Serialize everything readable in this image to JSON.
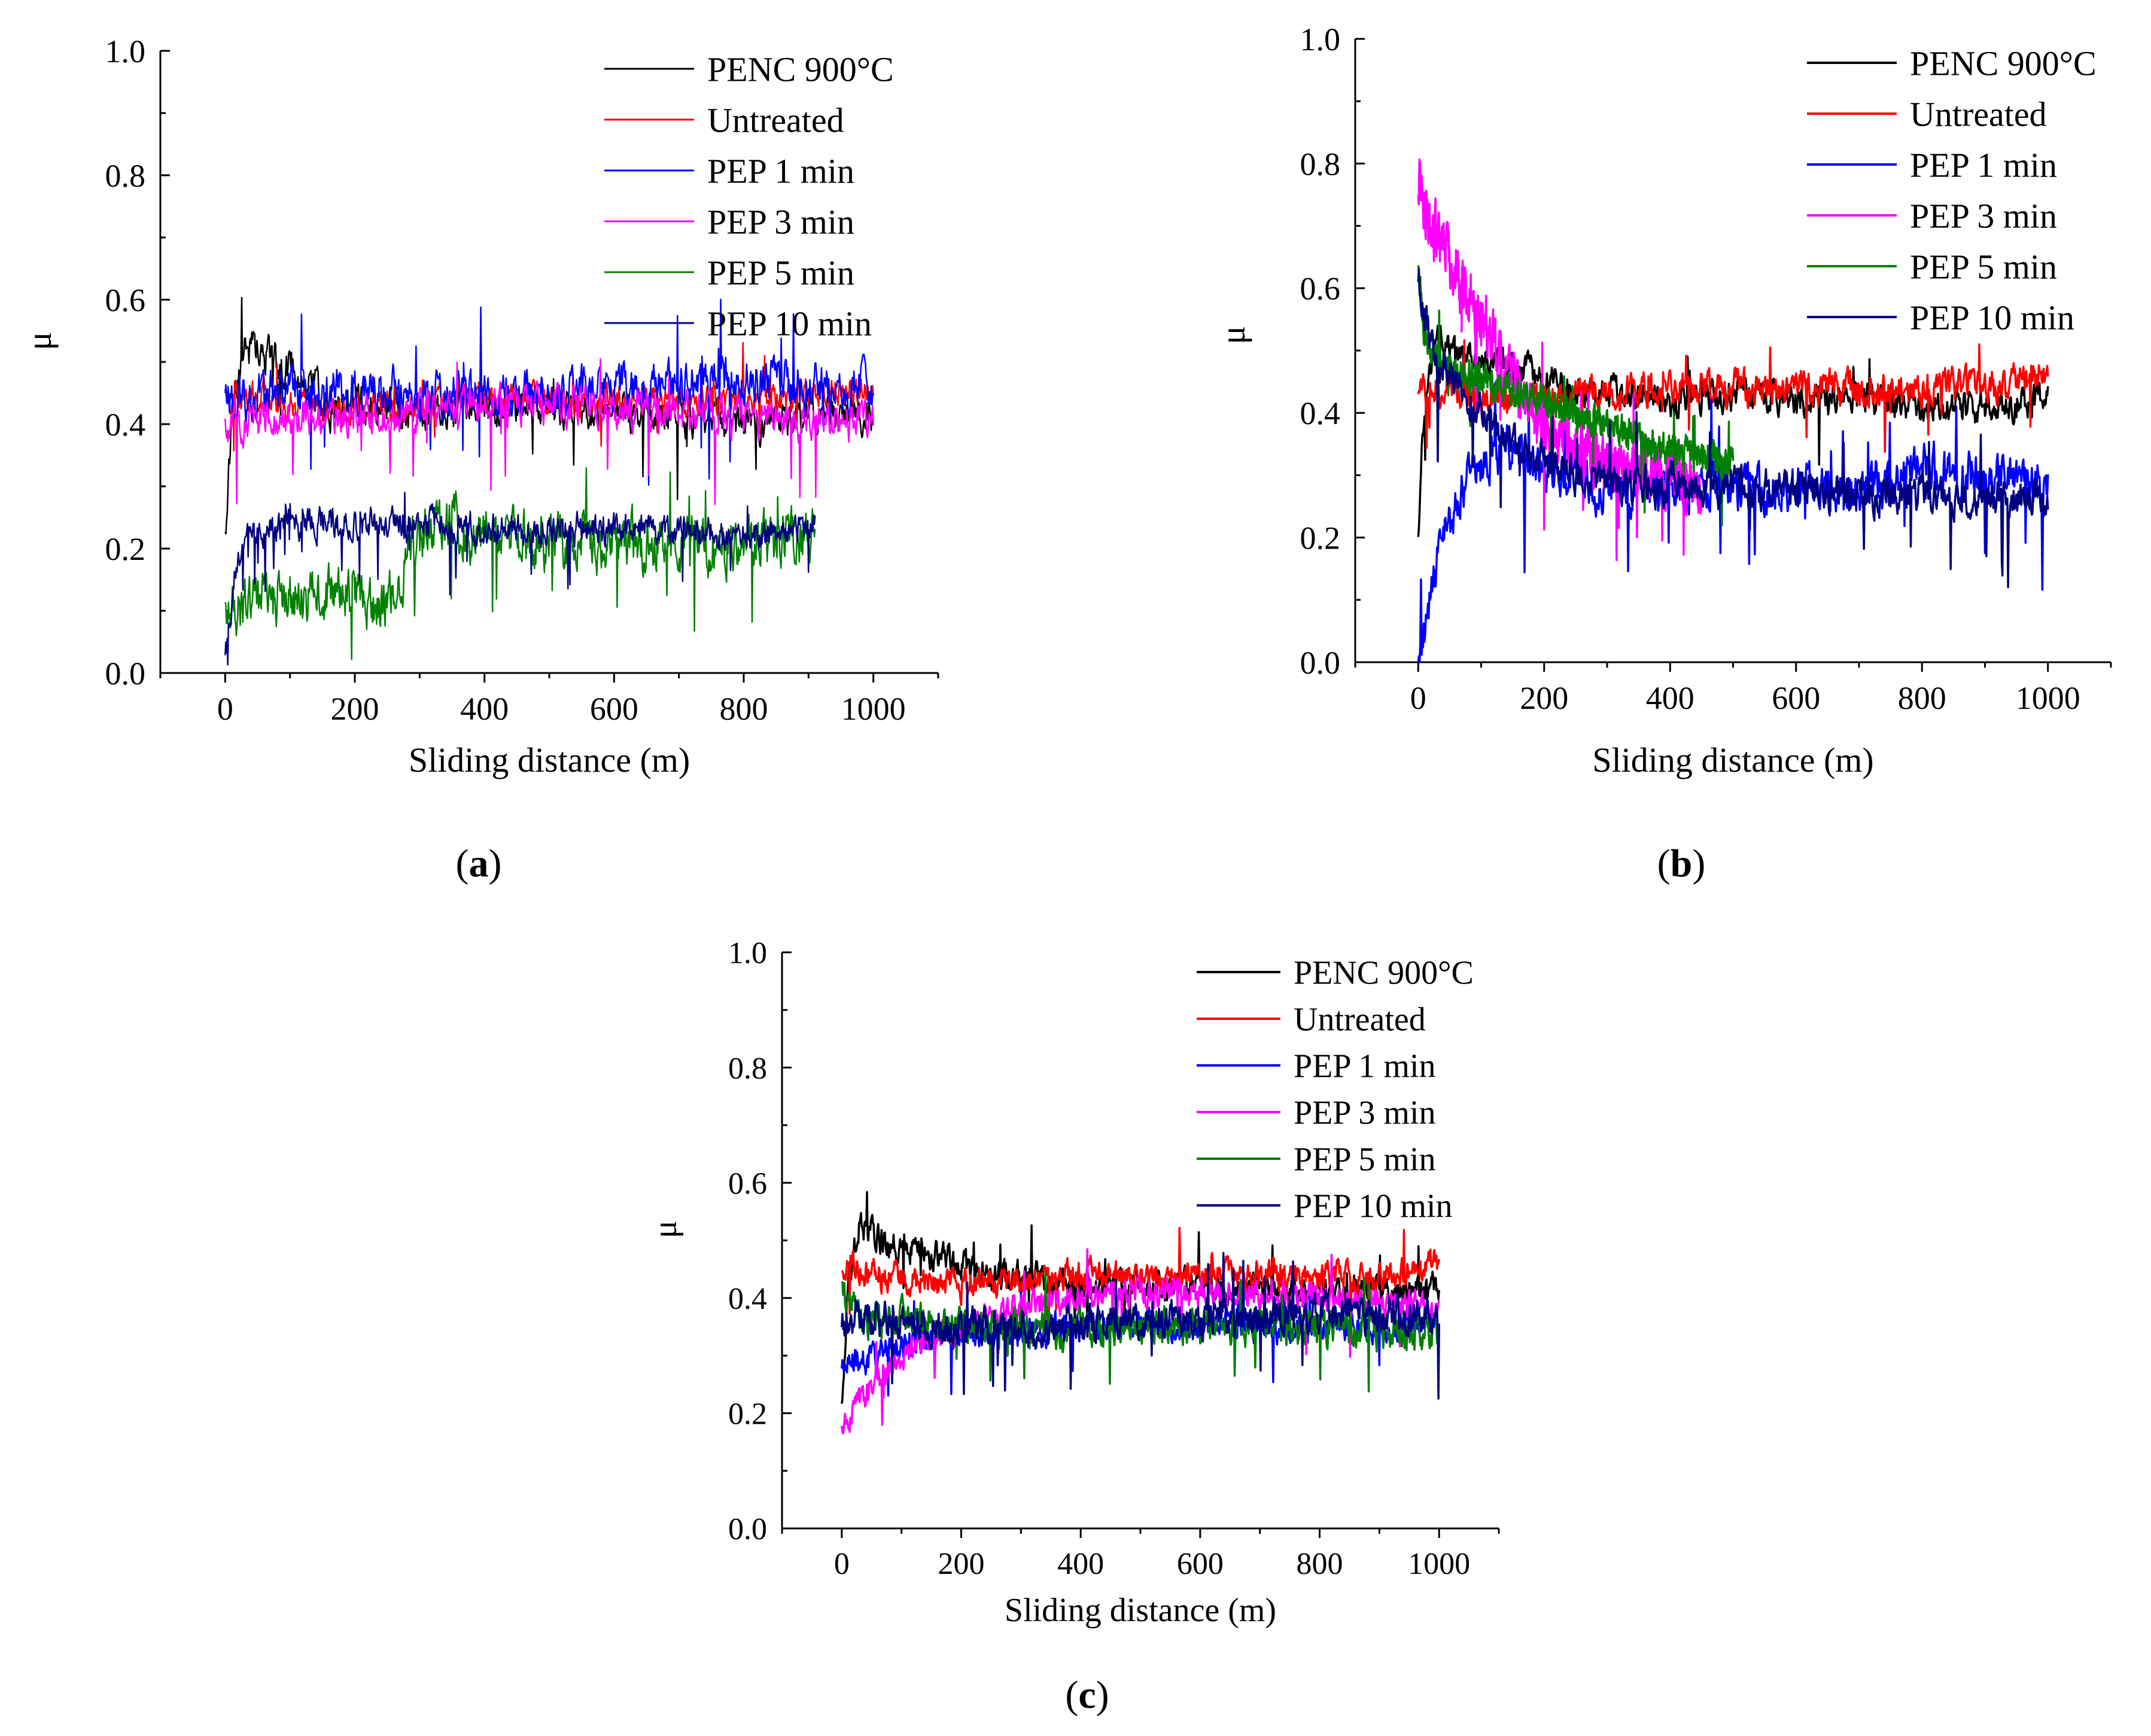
{
  "figure": {
    "panel_letters": [
      "a",
      "b",
      "c"
    ]
  },
  "chart_data": [
    {
      "type": "line",
      "panel": "a",
      "title": "",
      "xlabel": "Sliding distance (m)",
      "ylabel": "μ",
      "xlim": [
        -100,
        1100
      ],
      "ylim": [
        0,
        1.0
      ],
      "xticks": [
        0,
        200,
        400,
        600,
        800,
        1000
      ],
      "yticks": [
        0.0,
        0.2,
        0.4,
        0.6,
        0.8,
        1.0
      ],
      "tick_labels_x": [
        "0",
        "200",
        "400",
        "600",
        "800",
        "1000"
      ],
      "tick_labels_y": [
        "0.0",
        "0.2",
        "0.4",
        "0.6",
        "0.8",
        "1.0"
      ],
      "legend_position": "top-right",
      "series": [
        {
          "name": "PENC 900°C",
          "color": "#000000",
          "noise": 0.025,
          "x": [
            0,
            10,
            30,
            40,
            80,
            140,
            150,
            200,
            300,
            400,
            500,
            600,
            700,
            760,
            800,
            900,
            1000
          ],
          "y": [
            0.22,
            0.42,
            0.52,
            0.52,
            0.5,
            0.47,
            0.42,
            0.43,
            0.42,
            0.43,
            0.43,
            0.42,
            0.42,
            0.4,
            0.4,
            0.41,
            0.42
          ]
        },
        {
          "name": "Untreated",
          "color": "#ff0000",
          "noise": 0.02,
          "x": [
            0,
            20,
            100,
            200,
            300,
            400,
            500,
            600,
            700,
            800,
            900,
            1000
          ],
          "y": [
            0.45,
            0.45,
            0.43,
            0.42,
            0.43,
            0.44,
            0.44,
            0.44,
            0.44,
            0.44,
            0.45,
            0.46
          ]
        },
        {
          "name": "PEP 1 min",
          "color": "#0000ff",
          "noise": 0.03,
          "x": [
            0,
            100,
            200,
            300,
            400,
            500,
            600,
            700,
            800,
            900,
            1000
          ],
          "y": [
            0.44,
            0.45,
            0.45,
            0.45,
            0.45,
            0.45,
            0.46,
            0.46,
            0.47,
            0.46,
            0.46
          ]
        },
        {
          "name": "PEP 3 min",
          "color": "#ff00ff",
          "noise": 0.025,
          "x": [
            0,
            100,
            200,
            300,
            400,
            500,
            600,
            700,
            800,
            900,
            1000
          ],
          "y": [
            0.4,
            0.41,
            0.41,
            0.42,
            0.43,
            0.43,
            0.43,
            0.42,
            0.41,
            0.41,
            0.4
          ]
        },
        {
          "name": "PEP 5 min",
          "color": "#008000",
          "noise": 0.035,
          "x": [
            0,
            50,
            100,
            200,
            240,
            300,
            350,
            400,
            500,
            600,
            700,
            800,
            910
          ],
          "y": [
            0.1,
            0.12,
            0.12,
            0.13,
            0.1,
            0.22,
            0.25,
            0.22,
            0.21,
            0.21,
            0.21,
            0.21,
            0.22
          ]
        },
        {
          "name": "PEP 10 min",
          "color": "#000080",
          "noise": 0.02,
          "x": [
            0,
            20,
            60,
            100,
            200,
            300,
            400,
            500,
            600,
            700,
            800,
            910
          ],
          "y": [
            0.02,
            0.2,
            0.23,
            0.24,
            0.24,
            0.24,
            0.23,
            0.23,
            0.23,
            0.23,
            0.22,
            0.23
          ]
        }
      ]
    },
    {
      "type": "line",
      "panel": "b",
      "title": "",
      "xlabel": "Sliding distance (m)",
      "ylabel": "μ",
      "xlim": [
        -100,
        1100
      ],
      "ylim": [
        0,
        1.0
      ],
      "xticks": [
        0,
        200,
        400,
        600,
        800,
        1000
      ],
      "yticks": [
        0.0,
        0.2,
        0.4,
        0.6,
        0.8,
        1.0
      ],
      "tick_labels_x": [
        "0",
        "200",
        "400",
        "600",
        "800",
        "1000"
      ],
      "tick_labels_y": [
        "0.0",
        "0.2",
        "0.4",
        "0.6",
        "0.8",
        "1.0"
      ],
      "legend_position": "top-right",
      "series": [
        {
          "name": "PENC 900°C",
          "color": "#000000",
          "noise": 0.02,
          "x": [
            0,
            10,
            30,
            60,
            150,
            250,
            350,
            400,
            500,
            600,
            700,
            800,
            900,
            1000
          ],
          "y": [
            0.22,
            0.42,
            0.52,
            0.5,
            0.47,
            0.44,
            0.43,
            0.42,
            0.43,
            0.42,
            0.42,
            0.41,
            0.41,
            0.42
          ]
        },
        {
          "name": "Untreated",
          "color": "#ff0000",
          "noise": 0.022,
          "x": [
            0,
            20,
            100,
            200,
            300,
            400,
            500,
            600,
            700,
            800,
            900,
            1000
          ],
          "y": [
            0.45,
            0.44,
            0.43,
            0.42,
            0.43,
            0.44,
            0.44,
            0.44,
            0.44,
            0.44,
            0.44,
            0.46
          ]
        },
        {
          "name": "PEP 1 min",
          "color": "#0000ff",
          "noise": 0.03,
          "x": [
            0,
            40,
            80,
            150,
            200,
            300,
            400,
            500,
            600,
            700,
            800,
            900,
            1000
          ],
          "y": [
            0.0,
            0.2,
            0.3,
            0.35,
            0.3,
            0.28,
            0.28,
            0.28,
            0.28,
            0.28,
            0.31,
            0.3,
            0.29
          ]
        },
        {
          "name": "PEP 3 min",
          "color": "#ff00ff",
          "noise": 0.035,
          "x": [
            0,
            20,
            50,
            100,
            150,
            200,
            300,
            400,
            450
          ],
          "y": [
            0.78,
            0.7,
            0.65,
            0.55,
            0.45,
            0.38,
            0.32,
            0.3,
            0.28
          ]
        },
        {
          "name": "PEP 5 min",
          "color": "#008000",
          "noise": 0.02,
          "x": [
            0,
            10,
            50,
            100,
            200,
            300,
            400,
            500
          ],
          "y": [
            0.65,
            0.52,
            0.47,
            0.45,
            0.42,
            0.38,
            0.34,
            0.32
          ]
        },
        {
          "name": "PEP 10 min",
          "color": "#000080",
          "noise": 0.025,
          "x": [
            0,
            10,
            30,
            60,
            100,
            150,
            200,
            300,
            400,
            500,
            600,
            700,
            800,
            900,
            1000
          ],
          "y": [
            0.63,
            0.55,
            0.48,
            0.45,
            0.4,
            0.35,
            0.32,
            0.29,
            0.28,
            0.28,
            0.28,
            0.27,
            0.27,
            0.27,
            0.26
          ]
        }
      ]
    },
    {
      "type": "line",
      "panel": "c",
      "title": "",
      "xlabel": "Sliding distance (m)",
      "ylabel": "μ",
      "xlim": [
        -100,
        1100
      ],
      "ylim": [
        0,
        1.0
      ],
      "xticks": [
        0,
        200,
        400,
        600,
        800,
        1000
      ],
      "yticks": [
        0.0,
        0.2,
        0.4,
        0.6,
        0.8,
        1.0
      ],
      "tick_labels_x": [
        "0",
        "200",
        "400",
        "600",
        "800",
        "1000"
      ],
      "tick_labels_y": [
        "0.0",
        "0.2",
        "0.4",
        "0.6",
        "0.8",
        "1.0"
      ],
      "legend_position": "top-right",
      "series": [
        {
          "name": "PENC 900°C",
          "color": "#000000",
          "noise": 0.02,
          "x": [
            0,
            10,
            30,
            60,
            150,
            250,
            350,
            400,
            500,
            600,
            700,
            800,
            900,
            1000
          ],
          "y": [
            0.22,
            0.42,
            0.53,
            0.5,
            0.48,
            0.44,
            0.43,
            0.42,
            0.43,
            0.42,
            0.42,
            0.41,
            0.41,
            0.42
          ]
        },
        {
          "name": "Untreated",
          "color": "#ff0000",
          "noise": 0.02,
          "x": [
            0,
            20,
            100,
            200,
            300,
            400,
            500,
            600,
            700,
            800,
            900,
            1000
          ],
          "y": [
            0.45,
            0.45,
            0.43,
            0.42,
            0.43,
            0.44,
            0.44,
            0.44,
            0.44,
            0.44,
            0.44,
            0.46
          ]
        },
        {
          "name": "PEP 1 min",
          "color": "#0000ff",
          "noise": 0.02,
          "x": [
            0,
            50,
            100,
            200,
            300,
            400,
            500,
            600,
            700,
            800,
            900,
            1000
          ],
          "y": [
            0.28,
            0.3,
            0.32,
            0.34,
            0.34,
            0.35,
            0.35,
            0.35,
            0.35,
            0.35,
            0.35,
            0.35
          ]
        },
        {
          "name": "PEP 3 min",
          "color": "#ff00ff",
          "noise": 0.02,
          "x": [
            0,
            20,
            50,
            100,
            200,
            300,
            400,
            500,
            600,
            700,
            800,
            900,
            1000
          ],
          "y": [
            0.18,
            0.2,
            0.25,
            0.3,
            0.35,
            0.38,
            0.4,
            0.41,
            0.41,
            0.41,
            0.4,
            0.39,
            0.38
          ]
        },
        {
          "name": "PEP 5 min",
          "color": "#008000",
          "noise": 0.025,
          "x": [
            0,
            10,
            50,
            100,
            200,
            300,
            400,
            500,
            600,
            700,
            800,
            900,
            1000
          ],
          "y": [
            0.43,
            0.38,
            0.36,
            0.36,
            0.35,
            0.35,
            0.35,
            0.35,
            0.35,
            0.35,
            0.35,
            0.34,
            0.34
          ]
        },
        {
          "name": "PEP 10 min",
          "color": "#000080",
          "noise": 0.025,
          "x": [
            0,
            20,
            100,
            200,
            300,
            400,
            500,
            600,
            700,
            800,
            900,
            1000
          ],
          "y": [
            0.35,
            0.37,
            0.36,
            0.35,
            0.35,
            0.35,
            0.36,
            0.36,
            0.37,
            0.37,
            0.37,
            0.36
          ]
        }
      ]
    }
  ]
}
